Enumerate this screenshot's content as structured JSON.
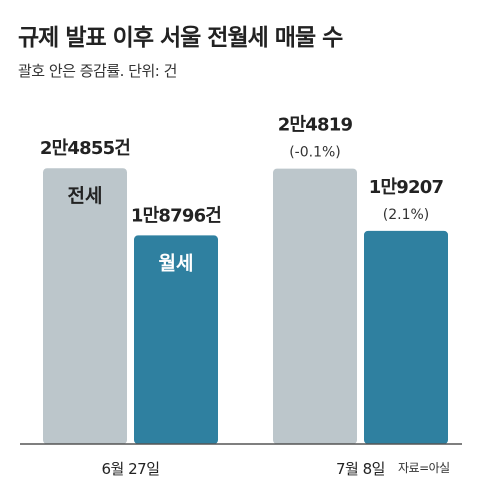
{
  "title": "규제 발표 이후 서울 전월세 매물 수",
  "subtitle": "괄호 안은 증감률. 단위: 건",
  "source": "자료=아실",
  "colors": {
    "jeonse": "#bcc6cb",
    "wolse": "#2f80a0",
    "jeonse_text": "#222222",
    "wolse_text": "#ffffff",
    "axis": "#555555"
  },
  "chart_data": {
    "type": "bar",
    "title": "규제 발표 이후 서울 전월세 매물 수",
    "subtitle": "괄호 안은 증감률. 단위: 건",
    "categories": [
      "6월 27일",
      "7월 8일"
    ],
    "series": [
      {
        "name": "전세",
        "values": [
          24855,
          24819
        ],
        "value_labels": [
          "2만4855건",
          "2만4819"
        ],
        "change_labels": [
          "",
          "(-0.1%)"
        ]
      },
      {
        "name": "월세",
        "values": [
          18796,
          19207
        ],
        "value_labels": [
          "1만8796건",
          "1만9207"
        ],
        "change_labels": [
          "",
          "(2.1%)"
        ]
      }
    ],
    "legend": "in-bar labels on first group",
    "grid": false,
    "ylim": [
      0,
      31000
    ]
  }
}
